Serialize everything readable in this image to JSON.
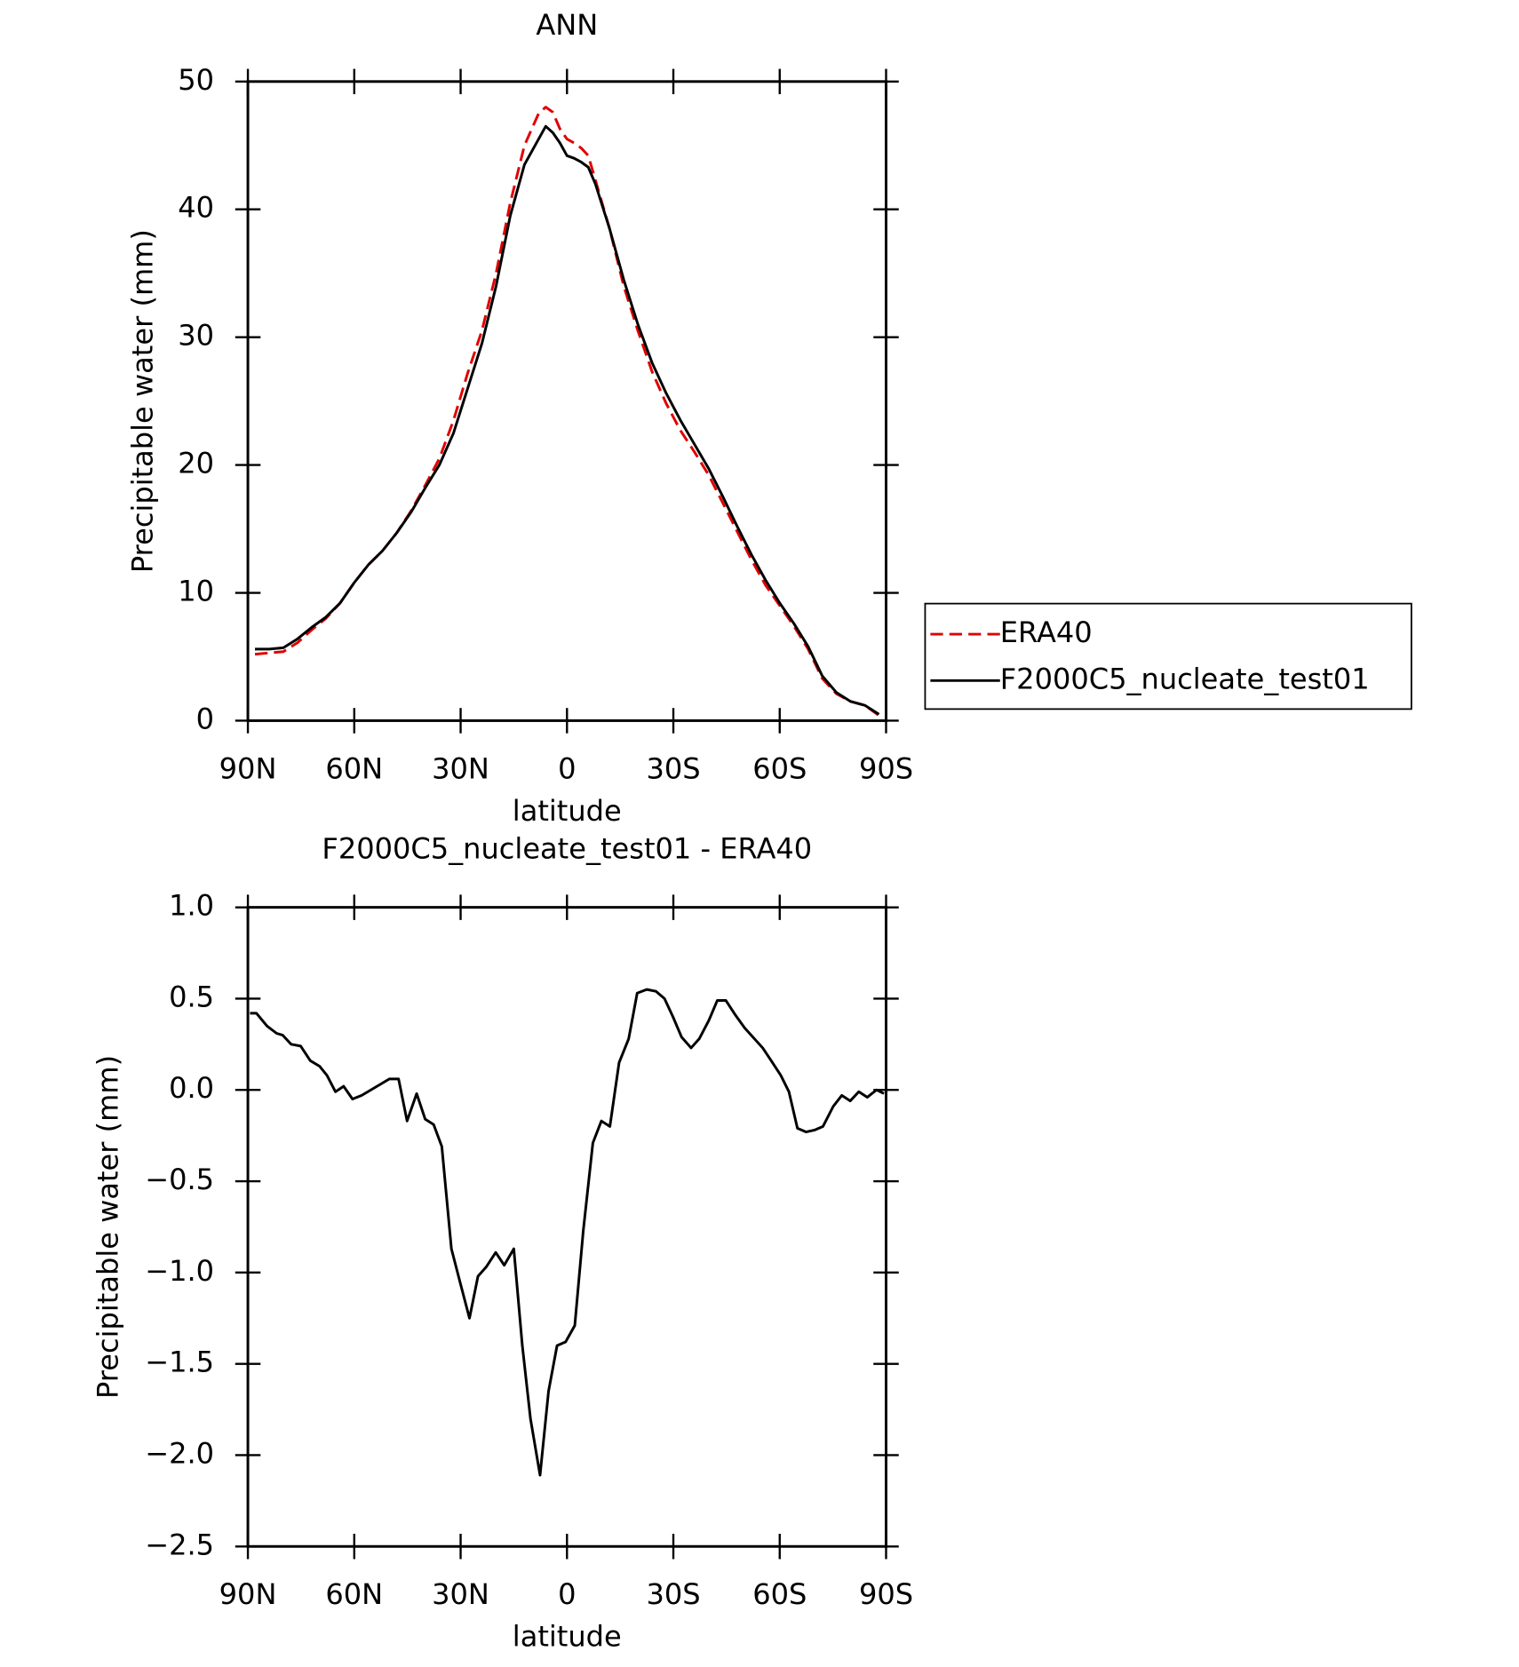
{
  "chart_data": [
    {
      "type": "line",
      "title": "ANN",
      "xlabel": "latitude",
      "ylabel": "Precipitable water (mm)",
      "xlim": [
        90,
        -90
      ],
      "ylim": [
        0,
        50
      ],
      "xticks": [
        {
          "value": 90,
          "label": "90N"
        },
        {
          "value": 60,
          "label": "60N"
        },
        {
          "value": 30,
          "label": "30N"
        },
        0,
        {
          "value": -30,
          "label": "30S"
        },
        {
          "value": -60,
          "label": "60S"
        },
        {
          "value": -90,
          "label": "90S"
        }
      ],
      "yticks": [
        0,
        10,
        20,
        30,
        40,
        50
      ],
      "x": [
        88,
        84,
        80,
        76,
        72,
        68,
        64,
        60,
        56,
        52,
        48,
        44,
        40,
        36,
        32,
        28,
        24,
        20,
        16,
        12,
        8,
        6,
        4,
        2,
        0,
        -2,
        -4,
        -6,
        -8,
        -12,
        -16,
        -20,
        -24,
        -28,
        -32,
        -36,
        -40,
        -44,
        -48,
        -52,
        -56,
        -60,
        -64,
        -68,
        -72,
        -76,
        -80,
        -84,
        -88
      ],
      "series": [
        {
          "name": "ERA40",
          "color": "#e00000",
          "dash": true,
          "values": [
            5.2,
            5.3,
            5.4,
            6.1,
            7.1,
            8.0,
            9.2,
            10.8,
            12.2,
            13.3,
            14.7,
            16.4,
            18.4,
            20.5,
            23.5,
            27.2,
            30.5,
            35.0,
            40.5,
            45.0,
            47.5,
            48.0,
            47.6,
            46.3,
            45.5,
            45.2,
            44.8,
            44.2,
            42.3,
            38.5,
            34.0,
            30.5,
            27.3,
            24.8,
            22.7,
            21.0,
            19.2,
            17.0,
            14.8,
            12.6,
            10.6,
            9.0,
            7.4,
            5.6,
            3.3,
            2.1,
            1.5,
            1.2,
            0.4
          ]
        },
        {
          "name": "F2000C5_nucleate_test01",
          "color": "#000000",
          "dash": false,
          "values": [
            5.6,
            5.6,
            5.7,
            6.4,
            7.3,
            8.1,
            9.2,
            10.8,
            12.2,
            13.3,
            14.7,
            16.3,
            18.2,
            20.0,
            22.5,
            26.0,
            29.5,
            34.0,
            39.5,
            43.5,
            45.5,
            46.5,
            46.0,
            45.2,
            44.2,
            44.0,
            43.7,
            43.3,
            42.0,
            38.5,
            34.5,
            31.0,
            28.0,
            25.6,
            23.5,
            21.6,
            19.7,
            17.5,
            15.2,
            13.0,
            11.0,
            9.2,
            7.6,
            5.8,
            3.5,
            2.2,
            1.5,
            1.2,
            0.5
          ]
        }
      ]
    },
    {
      "type": "line",
      "title": "F2000C5_nucleate_test01 - ERA40",
      "xlabel": "latitude",
      "ylabel": "Precipitable water (mm)",
      "xlim": [
        90,
        -90
      ],
      "ylim": [
        -2.5,
        1.0
      ],
      "xticks": [
        {
          "value": 90,
          "label": "90N"
        },
        {
          "value": 60,
          "label": "60N"
        },
        {
          "value": 30,
          "label": "30N"
        },
        0,
        {
          "value": -30,
          "label": "30S"
        },
        {
          "value": -60,
          "label": "60S"
        },
        {
          "value": -90,
          "label": "90S"
        }
      ],
      "yticks": [
        {
          "value": 1,
          "label": "1.0"
        },
        0.5,
        {
          "value": 0,
          "label": "0.0"
        },
        {
          "value": -0.5,
          "label": "−0.5"
        },
        {
          "value": -1,
          "label": "−1.0"
        },
        {
          "value": -1.5,
          "label": "−1.5"
        },
        {
          "value": -2,
          "label": "−2.0"
        },
        {
          "value": -2.5,
          "label": "−2.5"
        }
      ],
      "x": [
        89.4,
        87.6,
        84.6,
        81.9,
        80.2,
        77.8,
        75.1,
        72.4,
        69.8,
        67.7,
        65.3,
        63.0,
        60.5,
        57.9,
        50.1,
        47.5,
        45.1,
        42.4,
        40.0,
        37.6,
        35.3,
        32.6,
        30.2,
        27.5,
        25.1,
        22.8,
        20.1,
        17.7,
        15.0,
        12.6,
        10.3,
        7.6,
        5.2,
        2.8,
        0.4,
        -2.2,
        -4.6,
        -7.3,
        -9.7,
        -12.1,
        -14.7,
        -17.4,
        -19.8,
        -22.5,
        -25.1,
        -27.5,
        -29.9,
        -32.3,
        -35.0,
        -37.3,
        -40.0,
        -42.4,
        -44.8,
        -47.5,
        -50.1,
        -55.2,
        -57.6,
        -60.3,
        -62.6,
        -65.0,
        -67.4,
        -69.8,
        -72.2,
        -75.1,
        -77.5,
        -79.9,
        -82.3,
        -84.7,
        -87.3,
        -89.4
      ],
      "series": [
        {
          "color": "#000000",
          "dash": false,
          "values": [
            0.42,
            0.42,
            0.35,
            0.31,
            0.3,
            0.25,
            0.24,
            0.16,
            0.13,
            0.08,
            -0.01,
            0.02,
            -0.05,
            -0.03,
            0.06,
            0.06,
            -0.17,
            -0.02,
            -0.16,
            -0.19,
            -0.31,
            -0.87,
            -1.05,
            -1.25,
            -1.02,
            -0.97,
            -0.89,
            -0.96,
            -0.87,
            -1.4,
            -1.8,
            -2.11,
            -1.65,
            -1.4,
            -1.38,
            -1.29,
            -0.77,
            -0.29,
            -0.17,
            -0.2,
            0.15,
            0.28,
            0.53,
            0.55,
            0.54,
            0.5,
            0.4,
            0.29,
            0.23,
            0.28,
            0.38,
            0.49,
            0.49,
            0.41,
            0.34,
            0.23,
            0.16,
            0.08,
            -0.01,
            -0.21,
            -0.23,
            -0.22,
            -0.2,
            -0.09,
            -0.03,
            -0.06,
            -0.01,
            -0.04,
            0.0,
            -0.02
          ]
        }
      ]
    }
  ]
}
